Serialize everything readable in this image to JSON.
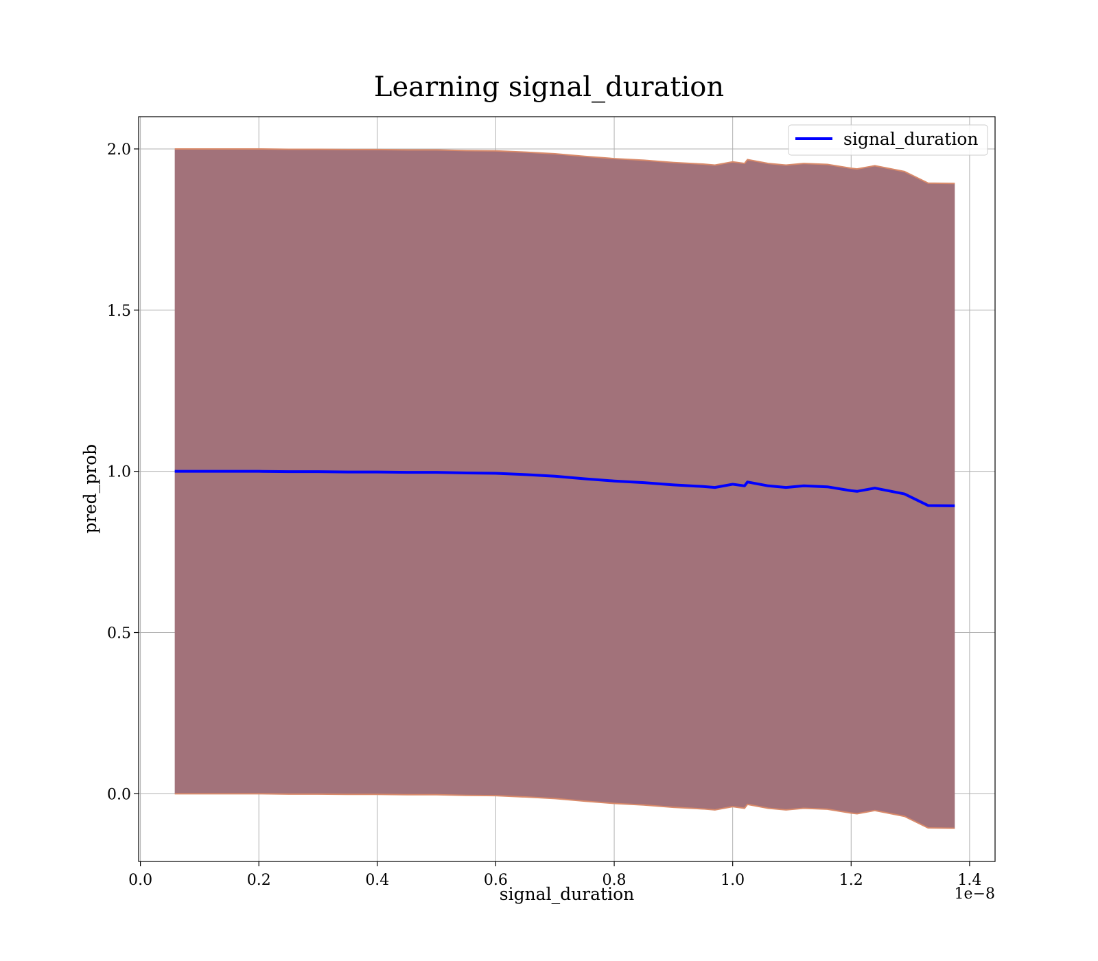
{
  "chart_data": {
    "type": "line",
    "title": "Learning signal_duration",
    "xlabel": "signal_duration",
    "ylabel": "pred_prob",
    "x_offset_text": "1e−8",
    "xlim": [
      -0.003,
      1.443
    ],
    "ylim": [
      -0.21,
      2.1
    ],
    "x_ticks": [
      0.0,
      0.2,
      0.4,
      0.6,
      0.8,
      1.0,
      1.2,
      1.4
    ],
    "x_tick_labels": [
      "0.0",
      "0.2",
      "0.4",
      "0.6",
      "0.8",
      "1.0",
      "1.2",
      "1.4"
    ],
    "y_ticks": [
      0.0,
      0.5,
      1.0,
      1.5,
      2.0
    ],
    "y_tick_labels": [
      "0.0",
      "0.5",
      "1.0",
      "1.5",
      "2.0"
    ],
    "grid": true,
    "legend": {
      "position": "top-right",
      "entries": [
        "signal_duration"
      ]
    },
    "colors": {
      "line": "#0000ff",
      "band_fill": "#a2727a",
      "band_edge": "#d98a6a"
    },
    "series": [
      {
        "name": "signal_duration",
        "x": [
          0.058,
          0.1,
          0.15,
          0.2,
          0.25,
          0.3,
          0.35,
          0.4,
          0.45,
          0.5,
          0.55,
          0.6,
          0.65,
          0.7,
          0.75,
          0.8,
          0.85,
          0.9,
          0.95,
          0.97,
          1.0,
          1.02,
          1.025,
          1.06,
          1.09,
          1.12,
          1.16,
          1.2,
          1.21,
          1.24,
          1.29,
          1.33,
          1.375
        ],
        "y": [
          1.0,
          1.0,
          1.0,
          1.0,
          0.999,
          0.999,
          0.998,
          0.998,
          0.997,
          0.997,
          0.995,
          0.994,
          0.99,
          0.985,
          0.977,
          0.97,
          0.965,
          0.958,
          0.953,
          0.95,
          0.96,
          0.955,
          0.967,
          0.955,
          0.95,
          0.955,
          0.952,
          0.94,
          0.938,
          0.948,
          0.93,
          0.894,
          0.893
        ]
      }
    ],
    "band": {
      "upper": [
        2.0,
        2.0,
        2.0,
        2.0,
        1.999,
        1.999,
        1.998,
        1.998,
        1.997,
        1.997,
        1.995,
        1.994,
        1.99,
        1.985,
        1.977,
        1.97,
        1.965,
        1.958,
        1.953,
        1.95,
        1.96,
        1.955,
        1.967,
        1.955,
        1.95,
        1.955,
        1.952,
        1.94,
        1.938,
        1.948,
        1.93,
        1.894,
        1.893
      ],
      "lower": [
        0.0,
        0.0,
        0.0,
        0.0,
        -0.001,
        -0.001,
        -0.002,
        -0.002,
        -0.003,
        -0.003,
        -0.005,
        -0.006,
        -0.01,
        -0.015,
        -0.023,
        -0.03,
        -0.035,
        -0.042,
        -0.047,
        -0.05,
        -0.04,
        -0.045,
        -0.033,
        -0.045,
        -0.05,
        -0.045,
        -0.048,
        -0.06,
        -0.062,
        -0.052,
        -0.07,
        -0.106,
        -0.107
      ]
    }
  }
}
